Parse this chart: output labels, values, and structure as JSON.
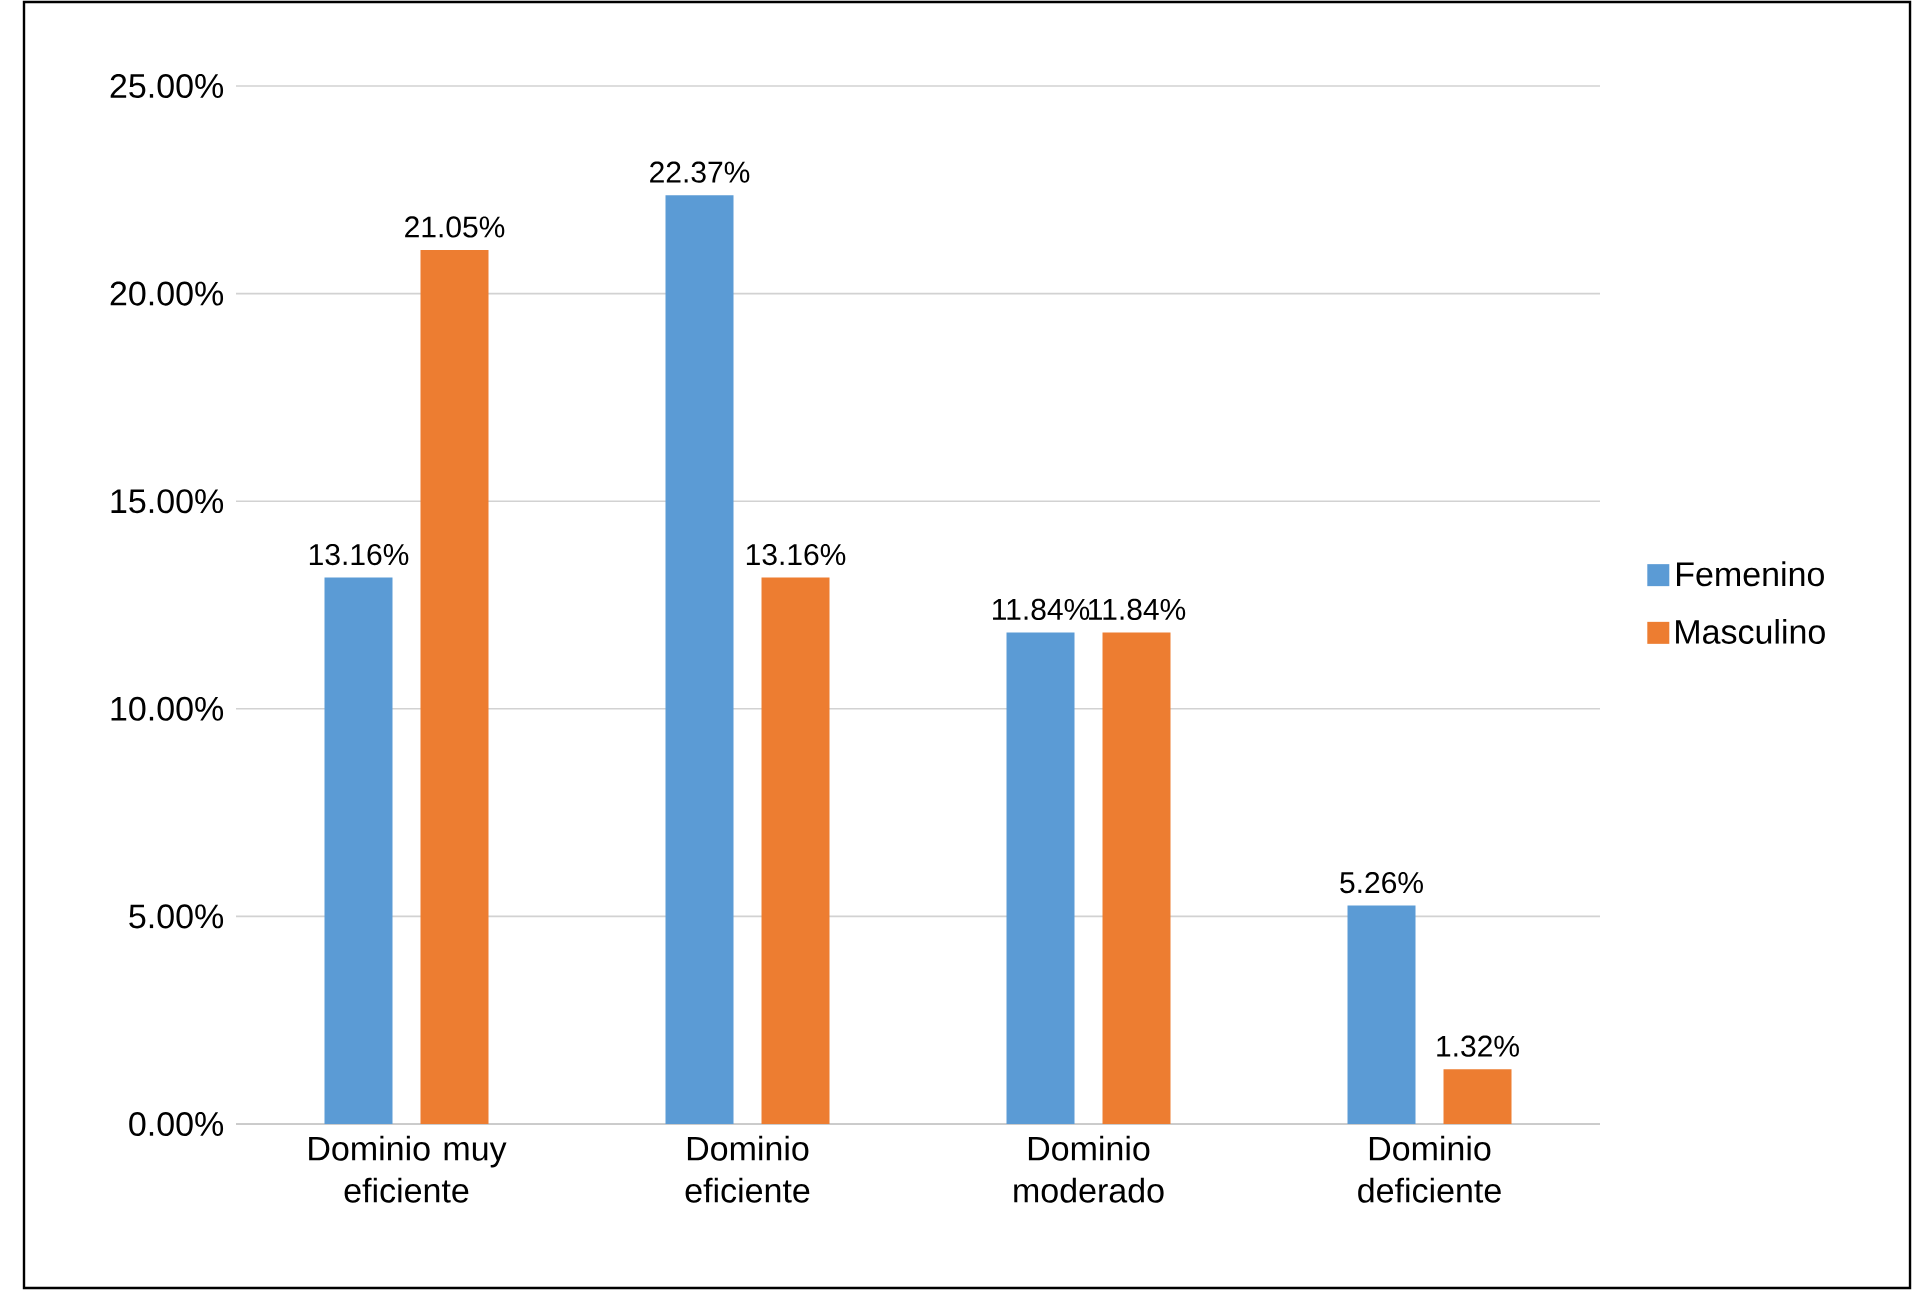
{
  "chart_data": {
    "type": "bar",
    "categories": [
      "Dominio muy eficiente",
      "Dominio eficiente",
      "Dominio moderado",
      "Dominio deficiente"
    ],
    "series": [
      {
        "name": "Femenino",
        "color": "#5b9bd5",
        "values": [
          13.16,
          22.37,
          11.84,
          5.26
        ],
        "value_labels": [
          "13.16%",
          "22.37%",
          "11.84%",
          "5.26%"
        ]
      },
      {
        "name": "Masculino",
        "color": "#ed7d31",
        "values": [
          21.05,
          13.16,
          11.84,
          1.32
        ],
        "value_labels": [
          "21.05%",
          "13.16%",
          "11.84%",
          "1.32%"
        ]
      }
    ],
    "ylim": [
      0,
      25
    ],
    "yticks": [
      {
        "value": 0,
        "label": "0.00%"
      },
      {
        "value": 5,
        "label": "5.00%"
      },
      {
        "value": 10,
        "label": "10.00%"
      },
      {
        "value": 15,
        "label": "15.00%"
      },
      {
        "value": 20,
        "label": "20.00%"
      },
      {
        "value": 25,
        "label": "25.00%"
      }
    ],
    "grid": "y",
    "legend": "right"
  }
}
